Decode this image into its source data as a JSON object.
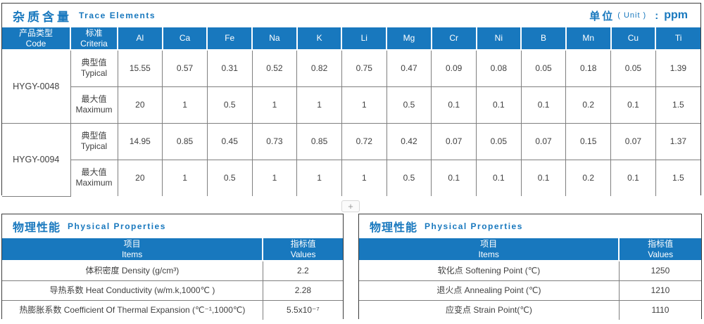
{
  "colors": {
    "accent_blue": "#1878be",
    "header_text": "#ffffff",
    "body_text": "#404040",
    "grid_line": "#7f7f7f",
    "panel_border": "#3c3c3c"
  },
  "trace_panel": {
    "title_cn": "杂质含量",
    "title_en": "Trace Elements",
    "unit": {
      "label_cn": "单位",
      "label_en": "( Unit )",
      "colon": ":",
      "value": "ppm"
    },
    "header": {
      "code_cn": "产品类型",
      "code_en": "Code",
      "criteria_cn": "标准",
      "criteria_en": "Criteria",
      "elements": [
        "Al",
        "Ca",
        "Fe",
        "Na",
        "K",
        "Li",
        "Mg",
        "Cr",
        "Ni",
        "B",
        "Mn",
        "Cu",
        "Ti"
      ]
    },
    "products": [
      {
        "code": "HYGY-0048",
        "rows": [
          {
            "criteria_cn": "典型值",
            "criteria_en": "Typical",
            "values": [
              "15.55",
              "0.57",
              "0.31",
              "0.52",
              "0.82",
              "0.75",
              "0.47",
              "0.09",
              "0.08",
              "0.05",
              "0.18",
              "0.05",
              "1.39"
            ]
          },
          {
            "criteria_cn": "最大值",
            "criteria_en": "Maximum",
            "values": [
              "20",
              "1",
              "0.5",
              "1",
              "1",
              "1",
              "0.5",
              "0.1",
              "0.1",
              "0.1",
              "0.2",
              "0.1",
              "1.5"
            ]
          }
        ]
      },
      {
        "code": "HYGY-0094",
        "rows": [
          {
            "criteria_cn": "典型值",
            "criteria_en": "Typical",
            "values": [
              "14.95",
              "0.85",
              "0.45",
              "0.73",
              "0.85",
              "0.72",
              "0.42",
              "0.07",
              "0.05",
              "0.07",
              "0.15",
              "0.07",
              "1.37"
            ]
          },
          {
            "criteria_cn": "最大值",
            "criteria_en": "Maximum",
            "values": [
              "20",
              "1",
              "0.5",
              "1",
              "1",
              "1",
              "0.5",
              "0.1",
              "0.1",
              "0.1",
              "0.2",
              "0.1",
              "1.5"
            ]
          }
        ]
      }
    ]
  },
  "expand_button": "+",
  "physical_panels": [
    {
      "title_cn": "物理性能",
      "title_en": "Physical Properties",
      "header": {
        "items_cn": "项目",
        "items_en": "Items",
        "values_cn": "指标值",
        "values_en": "Values"
      },
      "rows": [
        {
          "item": "体积密度 Density (g/cm³)",
          "value": "2.2"
        },
        {
          "item": "导热系数 Heat Conductivity (w/m.k,1000℃ )",
          "value": "2.28"
        },
        {
          "item": "热膨胀系数 Coefficient Of Thermal Expansion (℃⁻¹,1000℃)",
          "value": "5.5x10⁻⁷"
        }
      ]
    },
    {
      "title_cn": "物理性能",
      "title_en": "Physical Properties",
      "header": {
        "items_cn": "项目",
        "items_en": "Items",
        "values_cn": "指标值",
        "values_en": "Values"
      },
      "rows": [
        {
          "item": "软化点 Softening Point (℃)",
          "value": "1250"
        },
        {
          "item": "退火点 Annealing Point (℃)",
          "value": "1210"
        },
        {
          "item": "应变点 Strain Point(℃)",
          "value": "1110"
        }
      ]
    }
  ]
}
